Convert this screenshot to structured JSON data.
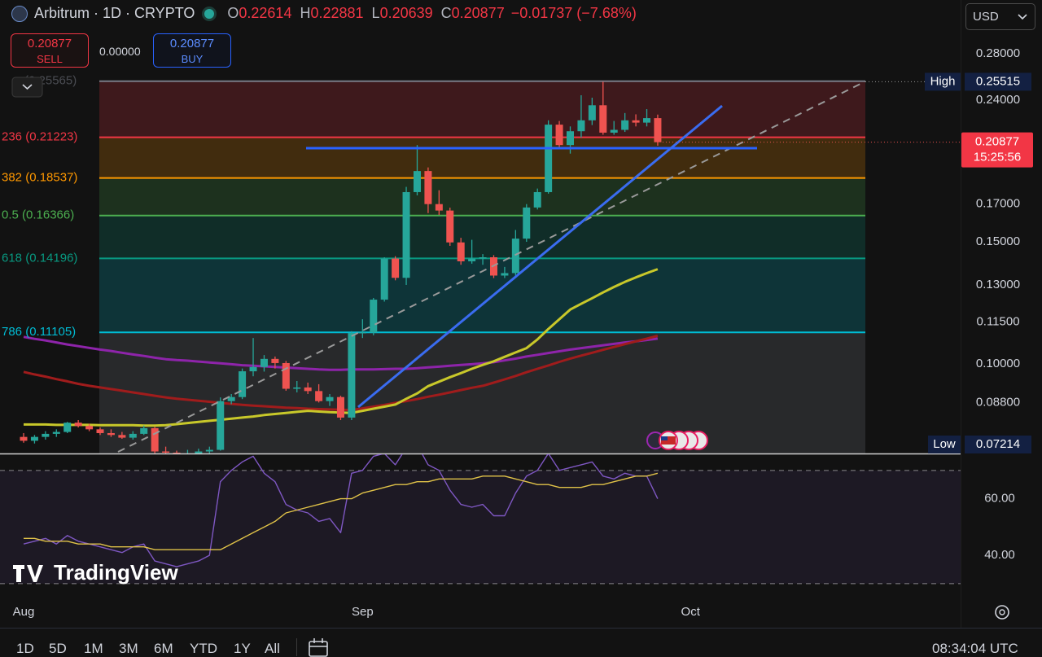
{
  "chart_data": [
    {
      "type": "candlestick",
      "title": "Arbitrum · 1D · CRYPTO",
      "log_scale": true,
      "categories": [
        "Aug",
        null,
        null,
        null,
        null,
        null,
        null,
        null,
        null,
        null,
        null,
        null,
        null,
        null,
        null,
        null,
        null,
        null,
        null,
        null,
        null,
        null,
        null,
        null,
        null,
        null,
        null,
        null,
        null,
        null,
        null,
        "Sep",
        null,
        null,
        null,
        null,
        null,
        null,
        null,
        null,
        null,
        null,
        null,
        null,
        null,
        null,
        null,
        null,
        null,
        null,
        null,
        null,
        null,
        null,
        null,
        null,
        null,
        null,
        null,
        null,
        null,
        "Oct"
      ],
      "open": [
        0.0785,
        0.0775,
        0.0785,
        0.0793,
        0.0798,
        0.0823,
        0.0814,
        0.0805,
        0.0795,
        0.079,
        0.0783,
        0.0793,
        0.0808,
        0.0748,
        0.0745,
        0.074,
        0.0742,
        0.0748,
        0.0752,
        0.0884,
        0.0896,
        0.0976,
        0.099,
        0.1017,
        0.1003,
        0.0921,
        0.0925,
        0.0914,
        0.0884,
        0.0896,
        0.0837,
        0.1108,
        0.111,
        0.1238,
        0.1419,
        0.1331,
        0.1769,
        0.1897,
        0.17,
        0.1664,
        0.1497,
        0.1406,
        0.1419,
        0.1425,
        0.1341,
        0.1352,
        0.1516,
        0.1681,
        0.1769,
        0.2213,
        0.2068,
        0.2165,
        0.2245,
        0.236,
        0.2155,
        0.2175,
        0.2245,
        0.2228,
        0.22614,
        null,
        null,
        null
      ],
      "high": [
        0.0795,
        0.079,
        0.08,
        0.0805,
        0.0825,
        0.083,
        0.082,
        0.081,
        0.0805,
        0.0798,
        0.08,
        0.0815,
        0.0812,
        0.076,
        0.075,
        0.0752,
        0.0755,
        0.076,
        0.0895,
        0.0905,
        0.0985,
        0.109,
        0.103,
        0.1025,
        0.101,
        0.0945,
        0.094,
        0.0935,
        0.0905,
        0.09,
        0.1115,
        0.116,
        0.1245,
        0.1425,
        0.143,
        0.18,
        0.2068,
        0.192,
        0.178,
        0.168,
        0.152,
        0.151,
        0.144,
        0.1435,
        0.138,
        0.156,
        0.17,
        0.179,
        0.2245,
        0.224,
        0.22,
        0.244,
        0.242,
        0.25515,
        0.224,
        0.23,
        0.229,
        0.233,
        0.22881,
        null,
        null,
        null
      ],
      "low": [
        0.077,
        0.0768,
        0.0778,
        0.0785,
        0.0795,
        0.081,
        0.08,
        0.079,
        0.0785,
        0.078,
        0.0778,
        0.079,
        0.074,
        0.0735,
        0.07214,
        0.073,
        0.0735,
        0.074,
        0.075,
        0.0875,
        0.089,
        0.096,
        0.0975,
        0.0985,
        0.0915,
        0.091,
        0.0905,
        0.088,
        0.087,
        0.083,
        0.083,
        0.109,
        0.11,
        0.123,
        0.132,
        0.13,
        0.175,
        0.165,
        0.164,
        0.148,
        0.139,
        0.1395,
        0.139,
        0.133,
        0.133,
        0.134,
        0.15,
        0.167,
        0.176,
        0.204,
        0.201,
        0.212,
        0.221,
        0.214,
        0.214,
        0.216,
        0.22,
        0.22,
        0.20639,
        null,
        null,
        null
      ],
      "close": [
        0.0775,
        0.0785,
        0.0793,
        0.0798,
        0.0823,
        0.0814,
        0.0805,
        0.0795,
        0.079,
        0.0783,
        0.0793,
        0.0808,
        0.0748,
        0.0745,
        0.074,
        0.0742,
        0.0748,
        0.0752,
        0.0884,
        0.0896,
        0.0976,
        0.099,
        0.1017,
        0.1003,
        0.0921,
        0.0925,
        0.0914,
        0.0884,
        0.0896,
        0.0837,
        0.1108,
        0.111,
        0.1238,
        0.1419,
        0.1331,
        0.1769,
        0.1897,
        0.17,
        0.1664,
        0.1497,
        0.1406,
        0.1419,
        0.1425,
        0.1341,
        0.1352,
        0.1516,
        0.1681,
        0.1769,
        0.2213,
        0.2068,
        0.2165,
        0.2245,
        0.236,
        0.2155,
        0.2175,
        0.2245,
        0.2228,
        0.22614,
        0.20877,
        null,
        null,
        null
      ],
      "up_color": "#26a69a",
      "down_color": "#ef5350",
      "series": [
        {
          "color": "#8e24aa",
          "values": [
            0.1094,
            0.1087,
            0.1081,
            0.1074,
            0.1067,
            0.1061,
            0.1055,
            0.1049,
            0.1044,
            0.1038,
            0.1032,
            0.1027,
            0.1021,
            0.1016,
            0.1013,
            0.1011,
            0.1008,
            0.1005,
            0.1002,
            0.0999,
            0.0996,
            0.0994,
            0.0992,
            0.099,
            0.0988,
            0.0986,
            0.0984,
            0.0982,
            0.0981,
            0.0981,
            0.0982,
            0.0982,
            0.0982,
            0.0983,
            0.0984,
            0.0984,
            0.0986,
            0.0989,
            0.0991,
            0.0994,
            0.0997,
            0.0999,
            0.1002,
            0.1006,
            0.1012,
            0.1018,
            0.1025,
            0.1031,
            0.1037,
            0.1043,
            0.1049,
            0.1054,
            0.1059,
            0.1064,
            0.1069,
            0.1074,
            0.1078,
            0.1083,
            0.1088,
            null,
            null,
            null
          ]
        },
        {
          "color": "#a01c1c",
          "values": [
            0.0974,
            0.0966,
            0.0959,
            0.0951,
            0.0944,
            0.0936,
            0.093,
            0.0925,
            0.092,
            0.0915,
            0.091,
            0.0905,
            0.09,
            0.0895,
            0.0891,
            0.0888,
            0.0885,
            0.0882,
            0.0879,
            0.0876,
            0.0873,
            0.0871,
            0.0869,
            0.0867,
            0.0865,
            0.0864,
            0.0862,
            0.0861,
            0.086,
            0.0859,
            0.0858,
            0.0863,
            0.0868,
            0.0873,
            0.0879,
            0.0884,
            0.089,
            0.0897,
            0.0903,
            0.091,
            0.0917,
            0.0924,
            0.093,
            0.094,
            0.095,
            0.0961,
            0.0973,
            0.0984,
            0.0995,
            0.1007,
            0.1018,
            0.1028,
            0.1038,
            0.1048,
            0.1058,
            0.1068,
            0.1078,
            0.1088,
            0.1098,
            null,
            null,
            null
          ]
        },
        {
          "color": "#c8c82a",
          "values": [
            0.0818,
            0.0818,
            0.0818,
            0.0817,
            0.0817,
            0.0817,
            0.0817,
            0.0816,
            0.0816,
            0.0816,
            0.0816,
            0.0815,
            0.0815,
            0.0816,
            0.0819,
            0.0822,
            0.0825,
            0.0828,
            0.0831,
            0.0834,
            0.0837,
            0.084,
            0.0844,
            0.0847,
            0.085,
            0.0853,
            0.0856,
            0.0854,
            0.0852,
            0.0851,
            0.085,
            0.0856,
            0.0862,
            0.0868,
            0.0874,
            0.0891,
            0.0907,
            0.0929,
            0.0943,
            0.0957,
            0.097,
            0.0984,
            0.0997,
            0.1009,
            0.1024,
            0.1039,
            0.1054,
            0.1085,
            0.1123,
            0.116,
            0.1198,
            0.1221,
            0.1244,
            0.1268,
            0.1291,
            0.1313,
            0.1333,
            0.1352,
            0.137,
            null,
            null,
            null
          ]
        }
      ],
      "ylim": [
        0.0743,
        0.3347
      ],
      "yticks": [
        {
          "value": 0.28,
          "label": "0.28000"
        },
        {
          "value": 0.24,
          "label": "0.24000"
        },
        {
          "value": 0.17,
          "label": "0.17000"
        },
        {
          "value": 0.15,
          "label": "0.15000"
        },
        {
          "value": 0.13,
          "label": "0.13000"
        },
        {
          "value": 0.115,
          "label": "0.11500"
        },
        {
          "value": 0.1,
          "label": "0.10000"
        },
        {
          "value": 0.088,
          "label": "0.08800"
        }
      ],
      "fib_levels": [
        {
          "label": "(0.25565)",
          "value": 0.25565,
          "color": "#787b86"
        },
        {
          "label": "236 (0.21223)",
          "value": 0.21223,
          "color": "#f23645"
        },
        {
          "label": "382 (0.18537)",
          "value": 0.18537,
          "color": "#ff9800"
        },
        {
          "label": "0.5 (0.16366)",
          "value": 0.16366,
          "color": "#4caf50"
        },
        {
          "label": "618 (0.14196)",
          "value": 0.14196,
          "color": "#089981"
        },
        {
          "label": "786 (0.11105)",
          "value": 0.11105,
          "color": "#00bcd4"
        }
      ],
      "high_marker": {
        "label": "High",
        "value": 0.25515
      },
      "low_marker": {
        "label": "Low",
        "value": 0.07214
      },
      "countdown": "15:25:56"
    },
    {
      "type": "line",
      "series": [
        {
          "color": "#7e57c2",
          "values": [
            44,
            45,
            46,
            44,
            47,
            45,
            44,
            43,
            42,
            41,
            43,
            44,
            38,
            37,
            36,
            37,
            38,
            40,
            66,
            70,
            73,
            75,
            69,
            66,
            58,
            56,
            55,
            52,
            53,
            48,
            69,
            70,
            75,
            76,
            72,
            78,
            79,
            72,
            70,
            63,
            58,
            57,
            58,
            54,
            54,
            62,
            68,
            70,
            76,
            70,
            71,
            72,
            73,
            68,
            67,
            69,
            68,
            68,
            60,
            null,
            null,
            null
          ]
        },
        {
          "color": "#e0c248",
          "values": [
            46,
            46,
            45,
            45,
            45,
            44,
            44,
            44,
            43,
            43,
            43,
            43,
            42,
            42,
            42,
            42,
            42,
            42,
            42,
            44,
            46,
            48,
            50,
            52,
            55,
            56,
            57,
            58,
            59,
            60,
            60,
            62,
            63,
            64,
            65,
            65,
            66,
            66,
            67,
            67,
            67,
            67,
            68,
            68,
            68,
            67,
            66,
            65,
            65,
            64,
            64,
            64,
            65,
            65,
            66,
            67,
            68,
            68,
            69,
            null,
            null,
            null
          ]
        }
      ],
      "ylim": [
        24.8,
        75.7
      ],
      "yticks": [
        {
          "value": 60,
          "label": "60.00"
        },
        {
          "value": 40,
          "label": "40.00"
        }
      ],
      "bands": [
        70,
        30
      ]
    }
  ],
  "header": {
    "ohlc_labels": [
      "O",
      "H",
      "L",
      "C"
    ],
    "change": "−0.01737 (−7.68%)"
  },
  "trade": {
    "sell": "SELL",
    "spread": "0.00000",
    "buy": "BUY"
  },
  "currency": "USD",
  "logo": "TradingView",
  "toolbar": {
    "ranges": [
      "1D",
      "5D",
      "1M",
      "3M",
      "6M",
      "YTD",
      "1Y",
      "All"
    ],
    "clock": "08:34:04 UTC"
  }
}
